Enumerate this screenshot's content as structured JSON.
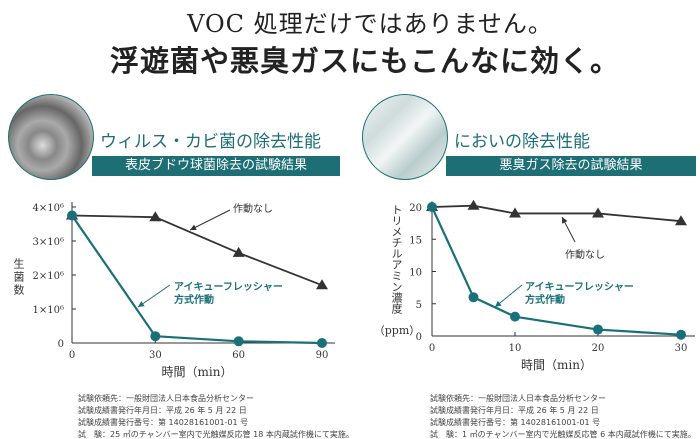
{
  "header": {
    "line1": "VOC 処理だけではありません。",
    "line2": "浮遊菌や悪臭ガスにもこんなに効く。"
  },
  "colors": {
    "accent": "#1d6f75",
    "series_on": "#1a7078",
    "series_off": "#333333"
  },
  "panels": [
    {
      "heading": "ウィルス・カビ菌の除去性能",
      "banner": "表皮ブドウ球菌除去の試験結果",
      "notes": [
        "試験依頼先：一般財団法人日本食品分析センター",
        "試験成績書発行年月日：平成 26 年 5 月 22 日",
        "試験成績書発行番号：第 14028161001-01 号",
        "試　験：25 ㎥のチャンバー室内で光触媒反応管 18 本内蔵試作機にて実施。"
      ]
    },
    {
      "heading": "においの除去性能",
      "banner": "悪臭ガス除去の試験結果",
      "notes": [
        "試験依頼先：一般財団法人日本食品分析センター",
        "試験成績書発行年月日：平成 26 年 5 月 22 日",
        "試験成績書発行番号：第 14028161001-01 号",
        "試　験：1 ㎥のチャンバー室内で光触媒反応管 6 本内蔵試作機にて実施。"
      ]
    }
  ],
  "chart_data": [
    {
      "type": "line",
      "xlabel": "時間（min）",
      "ylabel": "生菌数",
      "x": [
        0,
        30,
        60,
        90
      ],
      "xticks": [
        "0",
        "30",
        "60",
        "90"
      ],
      "yticks": [
        "0",
        "1×10⁶",
        "2×10⁶",
        "3×10⁶",
        "4×10⁶"
      ],
      "ylim": [
        0,
        4000000
      ],
      "xlim": [
        0,
        90
      ],
      "series": [
        {
          "name": "作動なし",
          "marker": "triangle",
          "values": [
            3750000,
            3700000,
            2650000,
            1700000
          ]
        },
        {
          "name": "アイキューフレッシャー\n方式作動",
          "name_lines": [
            "アイキューフレッシャー",
            "方式作動"
          ],
          "marker": "circle",
          "values": [
            3750000,
            200000,
            50000,
            0
          ]
        }
      ]
    },
    {
      "type": "line",
      "xlabel": "時間（min）",
      "ylabel": "トリメチルアミン濃度（ppm）",
      "ylabel_lines": [
        "トリメチルアミン濃度",
        "（ppm）"
      ],
      "x": [
        0,
        5,
        10,
        20,
        30
      ],
      "xticks": [
        "0",
        "10",
        "20",
        "30"
      ],
      "xtick_values": [
        0,
        10,
        20,
        30
      ],
      "yticks": [
        "0",
        "5",
        "10",
        "15",
        "20"
      ],
      "ylim": [
        0,
        20
      ],
      "xlim": [
        0,
        30
      ],
      "series": [
        {
          "name": "作動なし",
          "marker": "triangle",
          "values": [
            20,
            20.2,
            19,
            19,
            17.8
          ]
        },
        {
          "name": "アイキューフレッシャー\n方式作動",
          "name_lines": [
            "アイキューフレッシャー",
            "方式作動"
          ],
          "marker": "circle",
          "values": [
            20,
            6,
            3,
            1,
            0.2
          ]
        }
      ]
    }
  ]
}
